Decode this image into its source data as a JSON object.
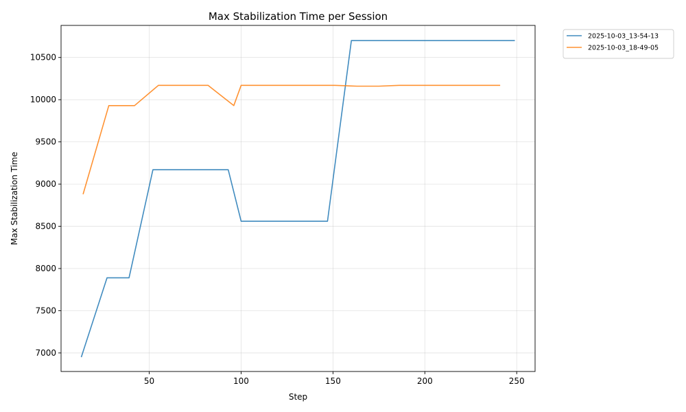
{
  "chart_data": {
    "type": "line",
    "title": "Max Stabilization Time per Session",
    "xlabel": "Step",
    "ylabel": "Max Stabilization Time",
    "xlim": [
      2,
      260
    ],
    "ylim": [
      6780,
      10880
    ],
    "xticks": [
      50,
      100,
      150,
      200,
      250
    ],
    "yticks": [
      7000,
      7500,
      8000,
      8500,
      9000,
      9500,
      10000,
      10500
    ],
    "grid": true,
    "legend_position": "outside-top-right",
    "series": [
      {
        "name": "2025-10-03_13-54-13",
        "color": "#1f77b4",
        "points": [
          [
            13,
            6950
          ],
          [
            27,
            7890
          ],
          [
            39,
            7890
          ],
          [
            52,
            9170
          ],
          [
            93,
            9170
          ],
          [
            100,
            8560
          ],
          [
            147,
            8560
          ],
          [
            160,
            10700
          ],
          [
            249,
            10700
          ]
        ]
      },
      {
        "name": "2025-10-03_18-49-05",
        "color": "#ff7f0e",
        "points": [
          [
            14,
            8880
          ],
          [
            28,
            9930
          ],
          [
            42,
            9930
          ],
          [
            55,
            10170
          ],
          [
            82,
            10170
          ],
          [
            96,
            9930
          ],
          [
            100,
            10170
          ],
          [
            151,
            10170
          ],
          [
            163,
            10160
          ],
          [
            175,
            10160
          ],
          [
            186,
            10170
          ],
          [
            241,
            10170
          ]
        ]
      }
    ]
  }
}
